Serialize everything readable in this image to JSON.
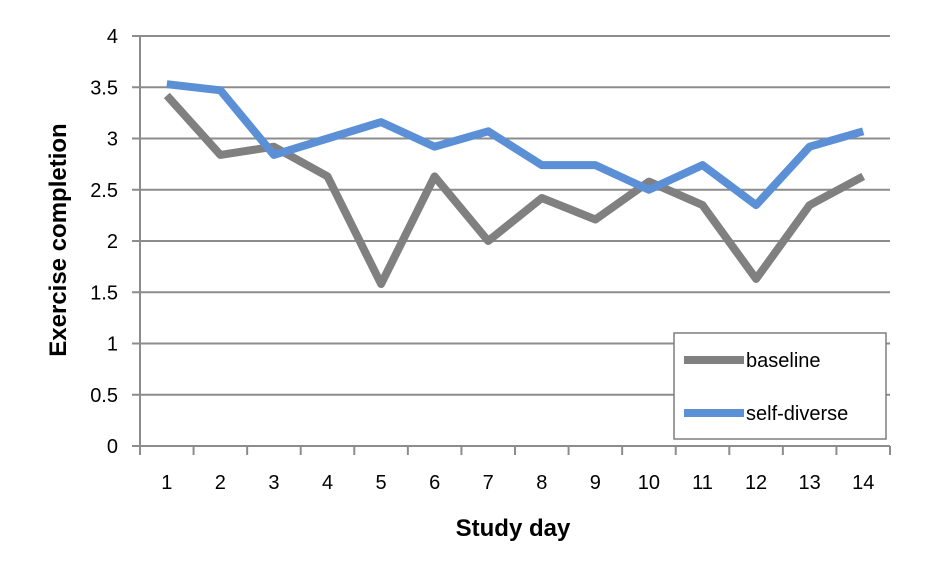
{
  "chart_data": {
    "type": "line",
    "title": "",
    "xlabel": "Study day",
    "ylabel": "Exercise completion",
    "categories": [
      "1",
      "2",
      "3",
      "4",
      "5",
      "6",
      "7",
      "8",
      "9",
      "10",
      "11",
      "12",
      "13",
      "14"
    ],
    "x": [
      1,
      2,
      3,
      4,
      5,
      6,
      7,
      8,
      9,
      10,
      11,
      12,
      13,
      14
    ],
    "ylim": [
      0,
      4
    ],
    "yticks": [
      "0",
      "0.5",
      "1",
      "1.5",
      "2",
      "2.5",
      "3",
      "3.5",
      "4"
    ],
    "grid": true,
    "legend_position": "bottom-right",
    "series": [
      {
        "name": "baseline",
        "color": "#808080",
        "values": [
          3.42,
          2.84,
          2.92,
          2.63,
          1.58,
          2.63,
          2.0,
          2.42,
          2.21,
          2.58,
          2.35,
          1.63,
          2.35,
          2.63
        ]
      },
      {
        "name": "self-diverse",
        "color": "#5b8fd6",
        "values": [
          3.53,
          3.47,
          2.84,
          3.0,
          3.16,
          2.92,
          3.07,
          2.74,
          2.74,
          2.5,
          2.74,
          2.35,
          2.92,
          3.07
        ]
      }
    ]
  }
}
